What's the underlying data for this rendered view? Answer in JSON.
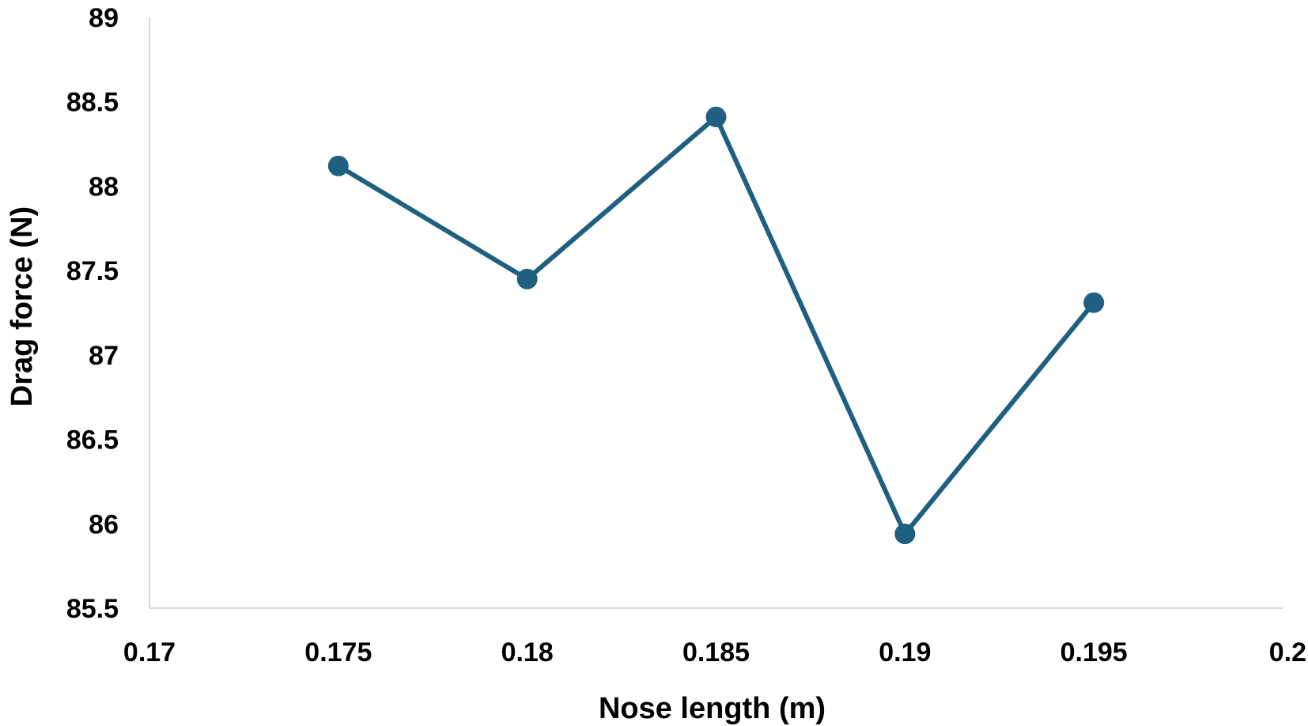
{
  "chart_data": {
    "type": "line",
    "title": "",
    "xlabel": "Nose length (m)",
    "ylabel": "Drag force (N)",
    "xlim": [
      0.17,
      0.2
    ],
    "ylim": [
      85.5,
      89
    ],
    "x_ticks": [
      0.17,
      0.175,
      0.18,
      0.185,
      0.19,
      0.195,
      0.2
    ],
    "x_tick_labels": [
      "0.17",
      "0.175",
      "0.18",
      "0.185",
      "0.19",
      "0.195",
      "0.2"
    ],
    "y_ticks": [
      85.5,
      86,
      86.5,
      87,
      87.5,
      88,
      88.5,
      89
    ],
    "y_tick_labels": [
      "85.5",
      "86",
      "86.5",
      "87",
      "87.5",
      "88",
      "88.5",
      "89"
    ],
    "grid": false,
    "legend": "none",
    "series": [
      {
        "color": "#1f5f7f",
        "x": [
          0.175,
          0.18,
          0.185,
          0.19,
          0.195
        ],
        "y": [
          88.12,
          87.45,
          88.41,
          85.94,
          87.31
        ]
      }
    ]
  }
}
